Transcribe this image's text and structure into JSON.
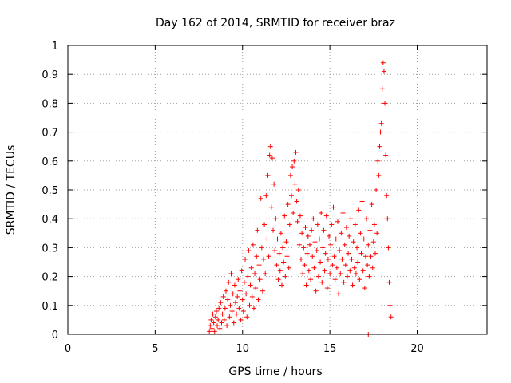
{
  "chart_data": {
    "type": "scatter",
    "title": "Day 162 of 2014, SRMTID for receiver braz",
    "xlabel": "GPS time / hours",
    "ylabel": "SRMTID / TECUs",
    "xlim": [
      0,
      24
    ],
    "ylim": [
      0,
      1
    ],
    "xticks": [
      0,
      5,
      10,
      15,
      20
    ],
    "xtick_labels": [
      "0",
      "5",
      "10",
      "15",
      "20"
    ],
    "yticks": [
      0,
      0.1,
      0.2,
      0.3,
      0.4,
      0.5,
      0.6,
      0.7,
      0.8,
      0.9,
      1
    ],
    "ytick_labels": [
      "0",
      "0.1",
      "0.2",
      "0.3",
      "0.4",
      "0.5",
      "0.6",
      "0.7",
      "0.8",
      "0.9",
      "1"
    ],
    "grid": true,
    "marker": "plus",
    "color": "#ff0000",
    "series": [
      {
        "name": "SRMTID",
        "points": [
          [
            8.1,
            0.01
          ],
          [
            8.15,
            0.03
          ],
          [
            8.2,
            0.05
          ],
          [
            8.25,
            0.02
          ],
          [
            8.3,
            0.07
          ],
          [
            8.35,
            0.04
          ],
          [
            8.4,
            0.01
          ],
          [
            8.45,
            0.06
          ],
          [
            8.5,
            0.08
          ],
          [
            8.55,
            0.03
          ],
          [
            8.6,
            0.05
          ],
          [
            8.65,
            0.09
          ],
          [
            8.7,
            0.02
          ],
          [
            8.75,
            0.11
          ],
          [
            8.8,
            0.04
          ],
          [
            8.85,
            0.07
          ],
          [
            8.9,
            0.13
          ],
          [
            8.95,
            0.05
          ],
          [
            9.0,
            0.09
          ],
          [
            9.05,
            0.15
          ],
          [
            9.1,
            0.03
          ],
          [
            9.15,
            0.12
          ],
          [
            9.2,
            0.18
          ],
          [
            9.25,
            0.06
          ],
          [
            9.3,
            0.1
          ],
          [
            9.35,
            0.21
          ],
          [
            9.4,
            0.08
          ],
          [
            9.45,
            0.14
          ],
          [
            9.5,
            0.04
          ],
          [
            9.55,
            0.17
          ],
          [
            9.6,
            0.11
          ],
          [
            9.65,
            0.07
          ],
          [
            9.7,
            0.13
          ],
          [
            9.75,
            0.19
          ],
          [
            9.8,
            0.09
          ],
          [
            9.85,
            0.15
          ],
          [
            9.9,
            0.05
          ],
          [
            9.95,
            0.22
          ],
          [
            10.0,
            0.12
          ],
          [
            10.05,
            0.08
          ],
          [
            10.1,
            0.18
          ],
          [
            10.15,
            0.26
          ],
          [
            10.2,
            0.14
          ],
          [
            10.25,
            0.06
          ],
          [
            10.3,
            0.2
          ],
          [
            10.35,
            0.29
          ],
          [
            10.4,
            0.1
          ],
          [
            10.45,
            0.17
          ],
          [
            10.5,
            0.23
          ],
          [
            10.55,
            0.13
          ],
          [
            10.6,
            0.31
          ],
          [
            10.65,
            0.09
          ],
          [
            10.7,
            0.21
          ],
          [
            10.75,
            0.16
          ],
          [
            10.8,
            0.27
          ],
          [
            10.85,
            0.36
          ],
          [
            10.9,
            0.12
          ],
          [
            10.95,
            0.24
          ],
          [
            11.0,
            0.19
          ],
          [
            11.05,
            0.47
          ],
          [
            11.1,
            0.3
          ],
          [
            11.15,
            0.15
          ],
          [
            11.2,
            0.26
          ],
          [
            11.25,
            0.38
          ],
          [
            11.3,
            0.21
          ],
          [
            11.35,
            0.48
          ],
          [
            11.4,
            0.33
          ],
          [
            11.45,
            0.55
          ],
          [
            11.5,
            0.27
          ],
          [
            11.55,
            0.62
          ],
          [
            11.6,
            0.65
          ],
          [
            11.65,
            0.44
          ],
          [
            11.7,
            0.61
          ],
          [
            11.75,
            0.36
          ],
          [
            11.8,
            0.52
          ],
          [
            11.85,
            0.29
          ],
          [
            11.9,
            0.4
          ],
          [
            11.95,
            0.24
          ],
          [
            12.0,
            0.33
          ],
          [
            12.05,
            0.19
          ],
          [
            12.1,
            0.28
          ],
          [
            12.15,
            0.22
          ],
          [
            12.2,
            0.35
          ],
          [
            12.25,
            0.17
          ],
          [
            12.3,
            0.3
          ],
          [
            12.35,
            0.25
          ],
          [
            12.4,
            0.41
          ],
          [
            12.45,
            0.2
          ],
          [
            12.5,
            0.32
          ],
          [
            12.55,
            0.27
          ],
          [
            12.6,
            0.45
          ],
          [
            12.65,
            0.23
          ],
          [
            12.7,
            0.38
          ],
          [
            12.75,
            0.55
          ],
          [
            12.8,
            0.48
          ],
          [
            12.85,
            0.58
          ],
          [
            12.9,
            0.42
          ],
          [
            12.95,
            0.6
          ],
          [
            13.0,
            0.52
          ],
          [
            13.05,
            0.63
          ],
          [
            13.1,
            0.46
          ],
          [
            13.15,
            0.39
          ],
          [
            13.2,
            0.5
          ],
          [
            13.25,
            0.31
          ],
          [
            13.3,
            0.41
          ],
          [
            13.35,
            0.26
          ],
          [
            13.4,
            0.35
          ],
          [
            13.45,
            0.21
          ],
          [
            13.5,
            0.3
          ],
          [
            13.55,
            0.24
          ],
          [
            13.6,
            0.37
          ],
          [
            13.65,
            0.17
          ],
          [
            13.7,
            0.28
          ],
          [
            13.75,
            0.34
          ],
          [
            13.8,
            0.22
          ],
          [
            13.85,
            0.31
          ],
          [
            13.9,
            0.19
          ],
          [
            13.95,
            0.36
          ],
          [
            14.0,
            0.27
          ],
          [
            14.05,
            0.4
          ],
          [
            14.1,
            0.23
          ],
          [
            14.15,
            0.32
          ],
          [
            14.2,
            0.15
          ],
          [
            14.25,
            0.29
          ],
          [
            14.3,
            0.38
          ],
          [
            14.35,
            0.2
          ],
          [
            14.4,
            0.33
          ],
          [
            14.45,
            0.25
          ],
          [
            14.5,
            0.42
          ],
          [
            14.55,
            0.18
          ],
          [
            14.6,
            0.3
          ],
          [
            14.65,
            0.36
          ],
          [
            14.7,
            0.22
          ],
          [
            14.75,
            0.28
          ],
          [
            14.8,
            0.41
          ],
          [
            14.85,
            0.16
          ],
          [
            14.9,
            0.26
          ],
          [
            14.95,
            0.34
          ],
          [
            15.0,
            0.21
          ],
          [
            15.05,
            0.31
          ],
          [
            15.1,
            0.38
          ],
          [
            15.15,
            0.24
          ],
          [
            15.2,
            0.44
          ],
          [
            15.25,
            0.27
          ],
          [
            15.3,
            0.19
          ],
          [
            15.35,
            0.33
          ],
          [
            15.4,
            0.23
          ],
          [
            15.45,
            0.39
          ],
          [
            15.5,
            0.14
          ],
          [
            15.55,
            0.29
          ],
          [
            15.6,
            0.21
          ],
          [
            15.65,
            0.35
          ],
          [
            15.7,
            0.26
          ],
          [
            15.75,
            0.42
          ],
          [
            15.8,
            0.18
          ],
          [
            15.85,
            0.31
          ],
          [
            15.9,
            0.24
          ],
          [
            15.95,
            0.37
          ],
          [
            16.0,
            0.2
          ],
          [
            16.05,
            0.28
          ],
          [
            16.1,
            0.34
          ],
          [
            16.15,
            0.22
          ],
          [
            16.2,
            0.4
          ],
          [
            16.25,
            0.26
          ],
          [
            16.3,
            0.17
          ],
          [
            16.35,
            0.32
          ],
          [
            16.4,
            0.23
          ],
          [
            16.45,
            0.38
          ],
          [
            16.5,
            0.21
          ],
          [
            16.55,
            0.3
          ],
          [
            16.6,
            0.25
          ],
          [
            16.65,
            0.43
          ],
          [
            16.7,
            0.19
          ],
          [
            16.75,
            0.35
          ],
          [
            16.8,
            0.28
          ],
          [
            16.85,
            0.46
          ],
          [
            16.9,
            0.22
          ],
          [
            16.95,
            0.33
          ],
          [
            17.0,
            0.16
          ],
          [
            17.05,
            0.27
          ],
          [
            17.1,
            0.4
          ],
          [
            17.15,
            0.24
          ],
          [
            17.2,
            0.31
          ],
          [
            17.25,
            0.2
          ],
          [
            17.3,
            0.36
          ],
          [
            17.35,
            0.27
          ],
          [
            17.4,
            0.45
          ],
          [
            17.45,
            0.23
          ],
          [
            17.5,
            0.32
          ],
          [
            17.55,
            0.38
          ],
          [
            17.6,
            0.28
          ],
          [
            17.65,
            0.5
          ],
          [
            17.7,
            0.35
          ],
          [
            17.75,
            0.6
          ],
          [
            17.8,
            0.55
          ],
          [
            17.85,
            0.65
          ],
          [
            17.9,
            0.7
          ],
          [
            17.95,
            0.73
          ],
          [
            18.0,
            0.85
          ],
          [
            18.05,
            0.94
          ],
          [
            18.1,
            0.91
          ],
          [
            18.15,
            0.8
          ],
          [
            18.2,
            0.62
          ],
          [
            18.25,
            0.48
          ],
          [
            18.3,
            0.4
          ],
          [
            18.35,
            0.3
          ],
          [
            18.4,
            0.18
          ],
          [
            18.45,
            0.1
          ],
          [
            18.5,
            0.06
          ],
          [
            17.2,
            0.0
          ]
        ]
      }
    ]
  }
}
